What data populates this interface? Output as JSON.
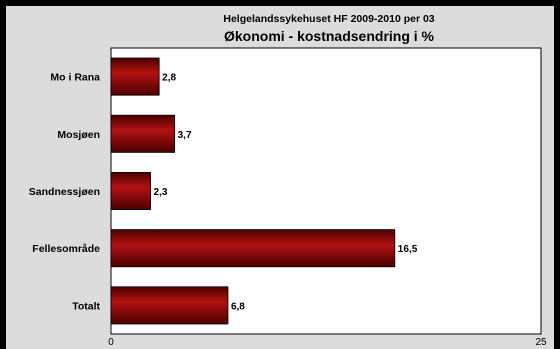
{
  "chart_data": {
    "type": "bar",
    "orientation": "horizontal",
    "subtitle": "Helgelandssykehuset HF 2009-2010 per 03",
    "title": "Økonomi - kostnadsendring i %",
    "categories": [
      "Mo i Rana",
      "Mosjøen",
      "Sandnessjøen",
      "Fellesområde",
      "Totalt"
    ],
    "values": [
      2.8,
      3.7,
      2.3,
      16.5,
      6.8
    ],
    "value_labels": [
      "2,8",
      "3,7",
      "2,3",
      "16,5",
      "6,8"
    ],
    "xlim": [
      0,
      25
    ],
    "x_tick_labels": [
      "0",
      "25"
    ],
    "grid": false,
    "legend": "none"
  },
  "colors": {
    "bar": "#7a0000",
    "bar_light": "#b31212",
    "bar_dark": "#4a0000",
    "plot_background": "#ffffff",
    "panel_background": "#dcdcdc",
    "frame": "#000000"
  }
}
